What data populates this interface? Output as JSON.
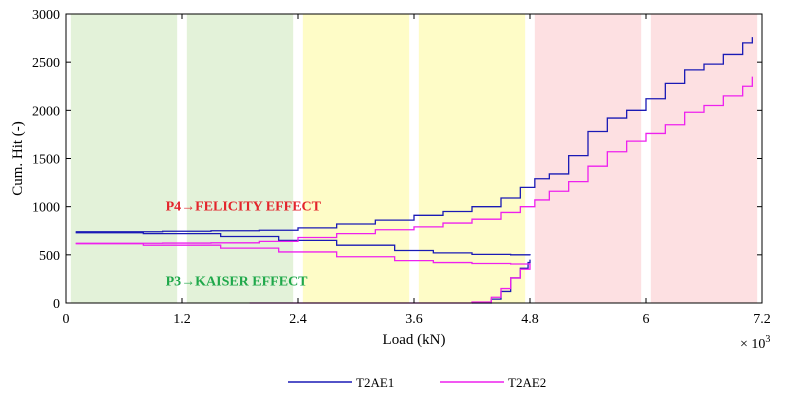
{
  "chart_data": {
    "type": "line",
    "title": "",
    "xlabel": "Load (kN)",
    "ylabel": "Cum. Hit (-)",
    "x_multiplier": "× 10",
    "x_multiplier_exp": "3",
    "xlim": [
      0,
      7.2
    ],
    "ylim": [
      0,
      3000
    ],
    "xticks": [
      0,
      1.2,
      2.4,
      3.6,
      4.8,
      6,
      7.2
    ],
    "xtick_labels": [
      "0",
      "1.2",
      "2.4",
      "3.6",
      "4.8",
      "6",
      "7.2"
    ],
    "yticks": [
      0,
      500,
      1000,
      1500,
      2000,
      2500,
      3000
    ],
    "ytick_labels": [
      "0",
      "500",
      "1000",
      "1500",
      "2000",
      "2500",
      "3000"
    ],
    "grid": false,
    "legend_position": "bottom-center",
    "bands": [
      {
        "name": "band-1",
        "x0": 0.05,
        "x1": 1.15,
        "color": "#e3f2d9"
      },
      {
        "name": "band-2",
        "x0": 1.25,
        "x1": 2.35,
        "color": "#e3f2d9"
      },
      {
        "name": "band-3",
        "x0": 2.45,
        "x1": 3.55,
        "color": "#fefcc7"
      },
      {
        "name": "band-4",
        "x0": 3.65,
        "x1": 4.75,
        "color": "#fefcc7"
      },
      {
        "name": "band-5",
        "x0": 4.85,
        "x1": 5.95,
        "color": "#fde0e2"
      },
      {
        "name": "band-6",
        "x0": 6.05,
        "x1": 7.15,
        "color": "#fde0e2"
      }
    ],
    "annotations": [
      {
        "name": "felicity-annotation",
        "text": "P4→FELICITY EFFECT",
        "x": 1.03,
        "y": 960,
        "color": "#e3242b"
      },
      {
        "name": "kaiser-annotation",
        "text": "P3→KAISER EFFECT",
        "x": 1.03,
        "y": 180,
        "color": "#1fa84a"
      }
    ],
    "series": [
      {
        "name": "T2AE1",
        "color": "#1a1ab5",
        "segments": [
          {
            "x": [
              0.1,
              0.5,
              1.0,
              1.5,
              2.0,
              2.4,
              2.8,
              3.2,
              3.6,
              3.9,
              4.2,
              4.5,
              4.7,
              4.85,
              5.0,
              5.2,
              5.4,
              5.6,
              5.8,
              6.0,
              6.2,
              6.4,
              6.6,
              6.8,
              7.0,
              7.1
            ],
            "y": [
              740,
              740,
              745,
              750,
              755,
              780,
              820,
              860,
              910,
              950,
              1000,
              1090,
              1200,
              1290,
              1340,
              1530,
              1780,
              1920,
              2000,
              2120,
              2280,
              2420,
              2480,
              2580,
              2700,
              2760
            ]
          },
          {
            "x": [
              0.1,
              0.8,
              1.6,
              2.2,
              2.8,
              3.4,
              3.8,
              4.2,
              4.6,
              4.8
            ],
            "y": [
              730,
              720,
              690,
              650,
              600,
              545,
              520,
              505,
              500,
              495
            ]
          },
          {
            "x": [
              4.2,
              4.4,
              4.5,
              4.6,
              4.7,
              4.78,
              4.8
            ],
            "y": [
              0,
              40,
              120,
              260,
              360,
              420,
              450
            ]
          }
        ]
      },
      {
        "name": "T2AE2",
        "color": "#ee20ee",
        "segments": [
          {
            "x": [
              0.1,
              0.5,
              1.0,
              1.5,
              2.0,
              2.4,
              2.8,
              3.2,
              3.6,
              3.9,
              4.2,
              4.5,
              4.7,
              4.85,
              5.0,
              5.2,
              5.4,
              5.6,
              5.8,
              6.0,
              6.2,
              6.4,
              6.6,
              6.8,
              7.0,
              7.1
            ],
            "y": [
              620,
              620,
              622,
              625,
              640,
              680,
              720,
              760,
              790,
              830,
              870,
              940,
              1000,
              1070,
              1160,
              1260,
              1420,
              1570,
              1680,
              1760,
              1850,
              1980,
              2050,
              2150,
              2250,
              2350
            ]
          },
          {
            "x": [
              0.1,
              0.8,
              1.6,
              2.2,
              2.8,
              3.4,
              3.8,
              4.2,
              4.6,
              4.8
            ],
            "y": [
              615,
              600,
              570,
              530,
              480,
              440,
              420,
              410,
              405,
              400
            ]
          },
          {
            "x": [
              1.9,
              2.5,
              3.2,
              3.9,
              4.2,
              4.4,
              4.5,
              4.6,
              4.7,
              4.8
            ],
            "y": [
              0,
              0,
              0,
              0,
              10,
              60,
              150,
              260,
              350,
              400
            ]
          }
        ]
      }
    ]
  }
}
